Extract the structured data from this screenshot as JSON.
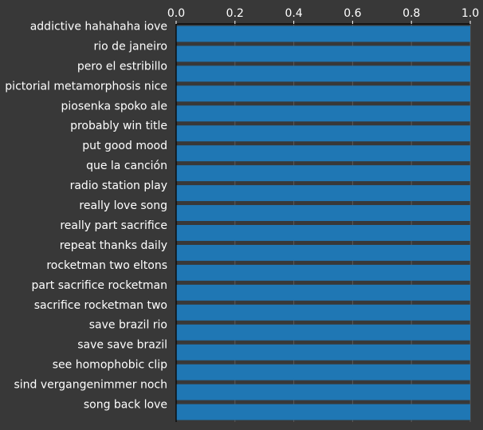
{
  "chart_data": {
    "type": "bar",
    "orientation": "horizontal",
    "categories": [
      "addictive hahahaha iove",
      "rio de janeiro",
      "pero el estribillo",
      "pictorial metamorphosis nice",
      "piosenka spoko ale",
      "probably win title",
      "put good mood",
      "que la canción",
      "radio station play",
      "really love song",
      "really part sacrifice",
      "repeat thanks daily",
      "rocketman two eltons",
      "part sacrifice rocketman",
      "sacrifice rocketman two",
      "save brazil rio",
      "save save brazil",
      "see homophobic clip",
      "sind vergangenimmer noch",
      "song back love"
    ],
    "values": [
      1,
      1,
      1,
      1,
      1,
      1,
      1,
      1,
      1,
      1,
      1,
      1,
      1,
      1,
      1,
      1,
      1,
      1,
      1,
      1
    ],
    "xlim": [
      0,
      1
    ],
    "xticks": [
      "0.0",
      "0.2",
      "0.4",
      "0.6",
      "0.8",
      "1.0"
    ],
    "x_axis_position": "top",
    "grid": "vertical",
    "title": "",
    "xlabel": "",
    "ylabel": "",
    "colors": {
      "background": "#383838",
      "bar": "#1f77b4",
      "grid": "#5a5a5a",
      "text": "#ffffff"
    }
  }
}
